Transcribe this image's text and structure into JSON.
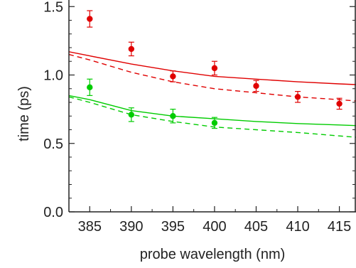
{
  "chart_data": {
    "type": "scatter",
    "xlabel": "probe wavelength (nm)",
    "ylabel": "time (ps)",
    "xlim": [
      382.5,
      417
    ],
    "ylim": [
      0.0,
      1.6
    ],
    "x_ticks": [
      385,
      390,
      395,
      400,
      405,
      410,
      415
    ],
    "x_tick_labels": [
      "385",
      "390",
      "395",
      "400",
      "405",
      "410",
      "415"
    ],
    "y_ticks": [
      0.0,
      0.5,
      1.0,
      1.5
    ],
    "y_tick_labels": [
      "0.0",
      "0.5",
      "1.0",
      "1.5"
    ],
    "grid": false,
    "series": [
      {
        "kind": "points",
        "color": "#e00000",
        "points": [
          {
            "x": 385,
            "y": 1.41,
            "err": 0.06
          },
          {
            "x": 390,
            "y": 1.19,
            "err": 0.05
          },
          {
            "x": 395,
            "y": 0.99,
            "err": 0.04
          },
          {
            "x": 400,
            "y": 1.05,
            "err": 0.05
          },
          {
            "x": 405,
            "y": 0.92,
            "err": 0.04
          },
          {
            "x": 410,
            "y": 0.84,
            "err": 0.04
          },
          {
            "x": 415,
            "y": 0.79,
            "err": 0.04
          }
        ]
      },
      {
        "kind": "points",
        "color": "#00cc00",
        "points": [
          {
            "x": 385,
            "y": 0.91,
            "err": 0.06
          },
          {
            "x": 390,
            "y": 0.71,
            "err": 0.05
          },
          {
            "x": 395,
            "y": 0.7,
            "err": 0.05
          },
          {
            "x": 400,
            "y": 0.65,
            "err": 0.04
          }
        ]
      },
      {
        "kind": "line",
        "style": "solid",
        "color": "#e00000",
        "x": [
          382.5,
          385,
          390,
          395,
          400,
          405,
          410,
          415,
          417
        ],
        "y": [
          1.17,
          1.14,
          1.08,
          1.03,
          0.99,
          0.97,
          0.95,
          0.935,
          0.93
        ]
      },
      {
        "kind": "line",
        "style": "dashed",
        "color": "#e00000",
        "x": [
          382.5,
          385,
          390,
          395,
          400,
          405,
          410,
          415,
          417
        ],
        "y": [
          1.15,
          1.11,
          1.02,
          0.95,
          0.9,
          0.87,
          0.84,
          0.82,
          0.81
        ]
      },
      {
        "kind": "line",
        "style": "solid",
        "color": "#00cc00",
        "x": [
          382.5,
          385,
          390,
          395,
          400,
          405,
          410,
          415,
          417
        ],
        "y": [
          0.85,
          0.82,
          0.74,
          0.7,
          0.68,
          0.66,
          0.645,
          0.635,
          0.63
        ]
      },
      {
        "kind": "line",
        "style": "dashed",
        "color": "#00cc00",
        "x": [
          382.5,
          385,
          390,
          395,
          400,
          405,
          410,
          415,
          417
        ],
        "y": [
          0.84,
          0.8,
          0.71,
          0.66,
          0.62,
          0.6,
          0.58,
          0.555,
          0.545
        ]
      }
    ]
  }
}
